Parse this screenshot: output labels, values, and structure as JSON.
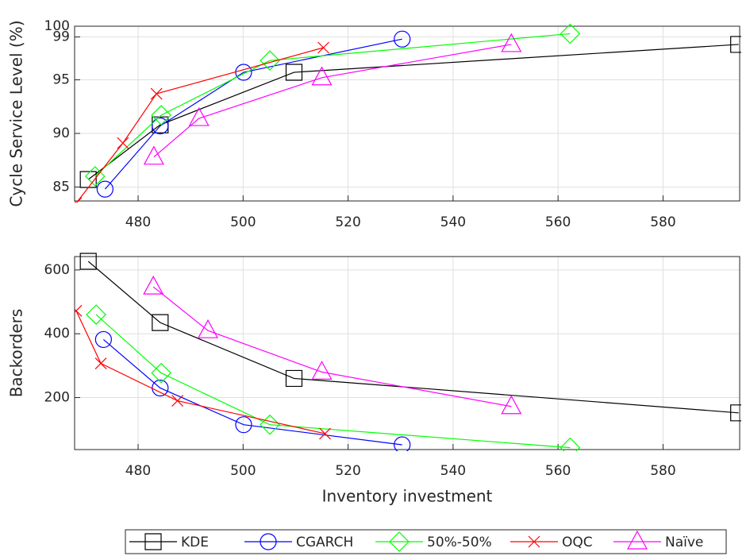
{
  "chart_data": [
    {
      "type": "line",
      "ylabel": "Cycle Service Level (%)",
      "grid": true,
      "xlim": [
        467.9,
        594.6
      ],
      "xticks": [
        480,
        500,
        520,
        540,
        560,
        580
      ],
      "ylim": [
        83.7,
        100
      ],
      "yticks": [
        85,
        90,
        95,
        99,
        100
      ],
      "series": [
        {
          "name": "KDE",
          "color": "#000000",
          "marker": "square",
          "x": [
            470.5,
            484.2,
            509.7,
            594.4
          ],
          "values": [
            85.7,
            90.8,
            95.7,
            98.3
          ]
        },
        {
          "name": "CGARCH",
          "color": "#0000ff",
          "marker": "circle",
          "x": [
            473.7,
            484.2,
            500.1,
            530.3
          ],
          "values": [
            84.8,
            90.7,
            95.7,
            98.8
          ]
        },
        {
          "name": "50%-50%",
          "color": "#00ff00",
          "marker": "diamond",
          "x": [
            471.8,
            484.4,
            505.1,
            562.3
          ],
          "values": [
            86.0,
            91.7,
            96.8,
            99.3
          ]
        },
        {
          "name": "OQC",
          "color": "#ff0000",
          "marker": "x",
          "x": [
            468.2,
            477.1,
            483.5,
            515.3
          ],
          "values": [
            83.5,
            89.1,
            93.7,
            98.0
          ]
        },
        {
          "name": "Naïve",
          "color": "#ff00ff",
          "marker": "triangle",
          "x": [
            483.0,
            491.6,
            515.0,
            551.1
          ],
          "values": [
            87.8,
            91.4,
            95.2,
            98.3
          ]
        }
      ]
    },
    {
      "type": "line",
      "xlabel": "Inventory investment",
      "ylabel": "Backorders",
      "grid": true,
      "xlim": [
        467.9,
        594.6
      ],
      "xticks": [
        480,
        500,
        520,
        540,
        560,
        580
      ],
      "ylim": [
        37,
        642
      ],
      "yticks": [
        200,
        400,
        600
      ],
      "series": [
        {
          "color": "#000000",
          "marker": "square",
          "x": [
            470.5,
            484.2,
            509.7,
            594.4
          ],
          "values": [
            627,
            435,
            260,
            152
          ]
        },
        {
          "color": "#0000ff",
          "marker": "circle",
          "x": [
            473.4,
            484.2,
            500.1,
            530.3
          ],
          "values": [
            382,
            230,
            115,
            52
          ]
        },
        {
          "color": "#00ff00",
          "marker": "diamond",
          "x": [
            472.0,
            484.4,
            505.1,
            562.3
          ],
          "values": [
            460,
            277,
            115,
            43
          ]
        },
        {
          "color": "#ff0000",
          "marker": "x",
          "x": [
            468.2,
            472.9,
            487.5,
            515.6
          ],
          "values": [
            472,
            307,
            190,
            87
          ]
        },
        {
          "color": "#ff00ff",
          "marker": "triangle",
          "x": [
            482.9,
            493.3,
            515.0,
            551.1
          ],
          "values": [
            547,
            410,
            280,
            172
          ]
        }
      ]
    }
  ]
}
